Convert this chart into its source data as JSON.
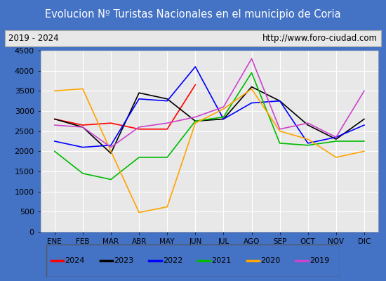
{
  "title": "Evolucion Nº Turistas Nacionales en el municipio de Coria",
  "subtitle_left": "2019 - 2024",
  "subtitle_right": "http://www.foro-ciudad.com",
  "months": [
    "ENE",
    "FEB",
    "MAR",
    "ABR",
    "MAY",
    "JUN",
    "JUL",
    "AGO",
    "SEP",
    "OCT",
    "NOV",
    "DIC"
  ],
  "series": {
    "2024": [
      2800,
      2650,
      2700,
      2550,
      2550,
      3650,
      null,
      null,
      null,
      null,
      null,
      null
    ],
    "2023": [
      2800,
      2600,
      1950,
      3450,
      3300,
      2750,
      2800,
      3600,
      3250,
      2650,
      2300,
      2800
    ],
    "2022": [
      2250,
      2100,
      2150,
      3300,
      3250,
      4100,
      2800,
      3200,
      3250,
      2200,
      2350,
      2650
    ],
    "2021": [
      2000,
      1450,
      1300,
      1850,
      1850,
      2750,
      2850,
      3950,
      2200,
      2150,
      2250,
      2250
    ],
    "2020": [
      3500,
      3550,
      2000,
      480,
      620,
      2700,
      3050,
      3550,
      2500,
      2300,
      1850,
      2000
    ],
    "2019": [
      2650,
      2600,
      2100,
      2600,
      2700,
      2850,
      3100,
      4300,
      2550,
      2700,
      2350,
      3500
    ]
  },
  "colors": {
    "2024": "#ff0000",
    "2023": "#000000",
    "2022": "#0000ff",
    "2021": "#00bb00",
    "2020": "#ffa500",
    "2019": "#cc44cc"
  },
  "ylim": [
    0,
    4500
  ],
  "yticks": [
    0,
    500,
    1000,
    1500,
    2000,
    2500,
    3000,
    3500,
    4000,
    4500
  ],
  "title_bgcolor": "#4472c4",
  "title_fgcolor": "#ffffff",
  "subtitle_bgcolor": "#e8e8e8",
  "plot_bgcolor": "#e8e8e8",
  "border_color": "#4472c4",
  "grid_color": "#ffffff"
}
